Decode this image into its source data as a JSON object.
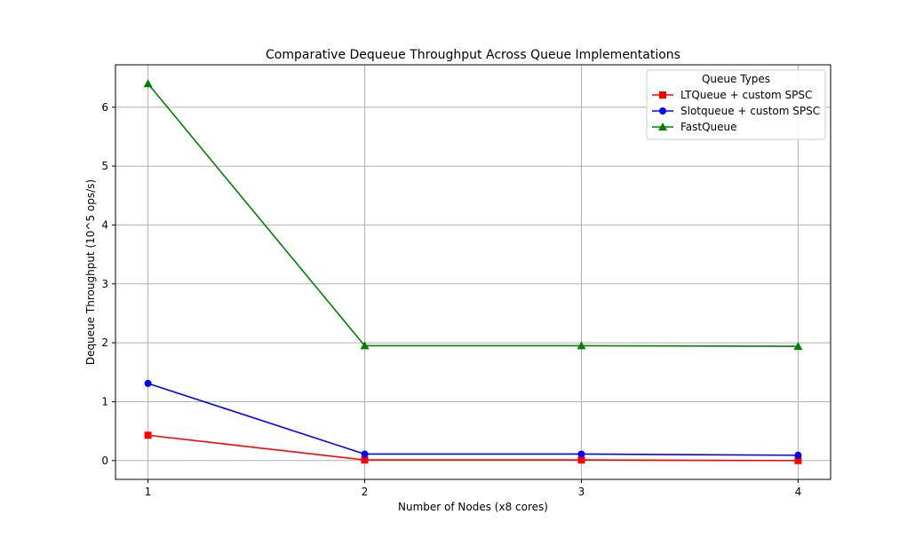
{
  "chart_data": {
    "type": "line",
    "title": "Comparative Dequeue Throughput Across Queue Implementations",
    "xlabel": "Number of Nodes (x8 cores)",
    "ylabel": "Dequeue Throughput (10^5 ops/s)",
    "x": [
      1,
      2,
      3,
      4
    ],
    "xticks": [
      1,
      2,
      3,
      4
    ],
    "xlim": [
      0.85,
      4.15
    ],
    "yticks": [
      0,
      1,
      2,
      3,
      4,
      5,
      6
    ],
    "ylim": [
      -0.32,
      6.72
    ],
    "grid": true,
    "legend": {
      "title": "Queue Types",
      "placement": "top-right"
    },
    "series": [
      {
        "name": "LTQueue + custom SPSC",
        "color": "#ff0000",
        "marker": "square",
        "values": [
          0.43,
          0.01,
          0.01,
          0.0
        ]
      },
      {
        "name": "Slotqueue + custom SPSC",
        "color": "#0000ff",
        "marker": "circle",
        "values": [
          1.31,
          0.11,
          0.11,
          0.09
        ]
      },
      {
        "name": "FastQueue",
        "color": "#008000",
        "marker": "triangle",
        "values": [
          6.4,
          1.95,
          1.95,
          1.94
        ]
      }
    ]
  }
}
